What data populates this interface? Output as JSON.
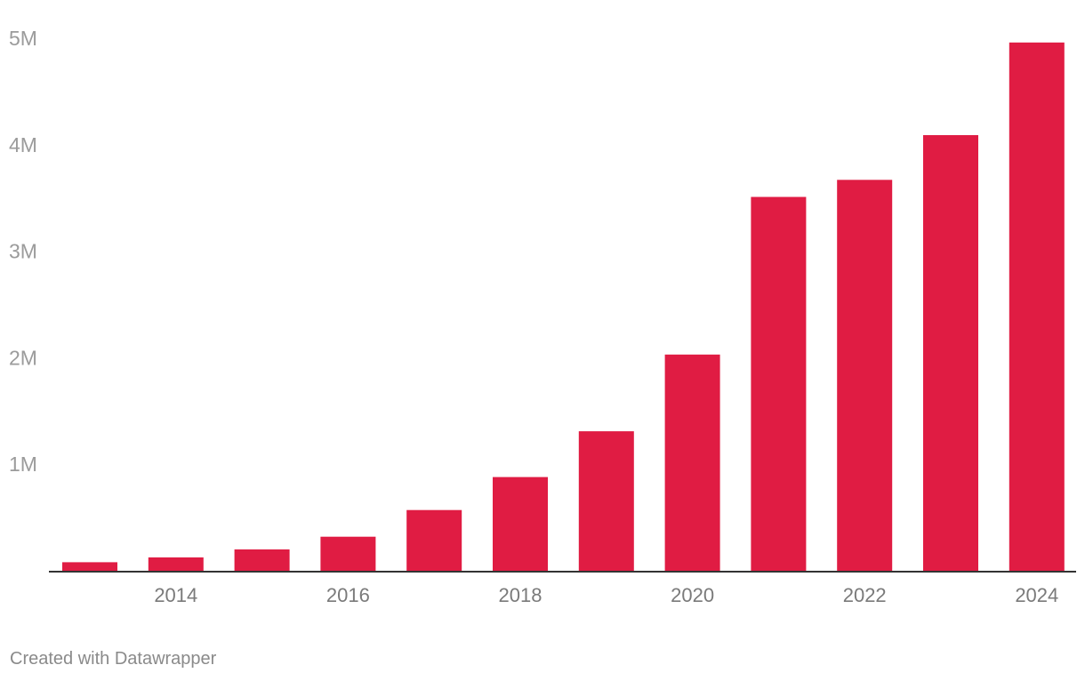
{
  "chart_data": {
    "type": "bar",
    "title": "",
    "xlabel": "",
    "ylabel": "",
    "categories": [
      "2013",
      "2014",
      "2015",
      "2016",
      "2017",
      "2018",
      "2019",
      "2020",
      "2021",
      "2022",
      "2023",
      "2024"
    ],
    "values": [
      80000,
      125000,
      200000,
      320000,
      570000,
      880000,
      1310000,
      2030000,
      3510000,
      3670000,
      4090000,
      4960000
    ],
    "x_tick_labels": [
      "2014",
      "2016",
      "2018",
      "2020",
      "2022",
      "2024"
    ],
    "y_ticks": [
      1000000,
      2000000,
      3000000,
      4000000,
      5000000
    ],
    "y_tick_labels": [
      "1M",
      "2M",
      "3M",
      "4M",
      "5M"
    ],
    "ylim": [
      0,
      5000000
    ],
    "grid": false,
    "legend": "none",
    "bar_color": "#e01c43"
  },
  "footer": {
    "credit": "Created with Datawrapper"
  }
}
